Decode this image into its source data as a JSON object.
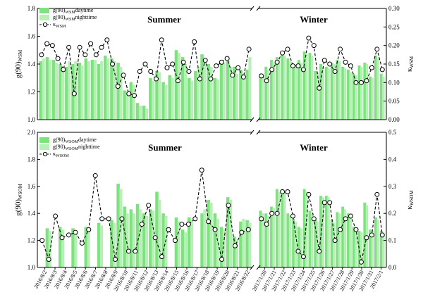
{
  "chart_data": [
    {
      "id": "top",
      "type": "bar",
      "ylabel_main": "g(90)",
      "ylabel_sub": "WSM",
      "y2label_main": "κ",
      "y2label_sub": "WSM",
      "ylim": [
        1.0,
        1.8
      ],
      "yticks": [
        "1.0",
        "1.2",
        "1.4",
        "1.6",
        "1.8"
      ],
      "y2lim": [
        0.0,
        0.3
      ],
      "y2ticks": [
        "0.00",
        "0.05",
        "0.10",
        "0.15",
        "0.20",
        "0.25",
        "0.30"
      ],
      "seasons": [
        "Summer",
        "Winter"
      ],
      "legend": [
        {
          "main": "g(90)",
          "sub": "WSM",
          "tail": "daytime"
        },
        {
          "main": "g(90)",
          "sub": "WSM",
          "tail": "nighttime"
        },
        {
          "main": "κ",
          "sub": "WSM",
          "tail": ""
        }
      ],
      "summer": {
        "day": [
          1.42,
          1.45,
          1.43,
          1.4,
          1.38,
          1.4,
          1.41,
          1.44,
          1.43,
          1.4,
          1.46,
          1.44,
          1.41,
          1.21,
          1.27,
          1.12,
          1.1,
          1.3,
          1.35,
          1.27,
          1.32,
          1.5,
          1.45,
          1.3,
          1.35,
          1.47,
          1.4,
          1.3,
          1.43,
          1.42,
          1.38,
          1.36,
          1.36
        ],
        "night": [
          1.44,
          1.43,
          1.41,
          1.38,
          1.42,
          1.42,
          1.39,
          1.42,
          1.43,
          1.42,
          1.44,
          1.42,
          1.38,
          1.19,
          1.25,
          1.1,
          1.08,
          1.28,
          1.34,
          1.25,
          1.3,
          1.48,
          1.4,
          1.28,
          1.38,
          1.44,
          1.38,
          1.29,
          1.41,
          1.38,
          1.33,
          1.3,
          1.45
        ],
        "kappa": [
          0.175,
          0.205,
          0.2,
          0.165,
          0.135,
          0.195,
          0.07,
          0.195,
          0.175,
          0.205,
          0.175,
          0.195,
          0.215,
          0.15,
          0.09,
          0.12,
          0.07,
          0.065,
          0.13,
          0.15,
          0.13,
          0.11,
          0.215,
          0.14,
          0.15,
          0.105,
          0.155,
          0.13,
          0.21,
          0.11,
          0.16,
          0.11,
          0.145,
          0.155,
          0.165,
          0.12,
          0.14,
          0.115,
          0.19
        ]
      },
      "winter": {
        "day": [
          1.33,
          1.38,
          1.43,
          1.45,
          1.47,
          1.44,
          1.4,
          1.43,
          1.49,
          1.48,
          1.35,
          1.4,
          1.38,
          1.41,
          1.43,
          1.38,
          1.36,
          1.33,
          1.39,
          1.41,
          1.31,
          1.46,
          1.33
        ],
        "night": [
          1.31,
          1.36,
          1.41,
          1.44,
          1.46,
          1.42,
          1.38,
          1.41,
          1.47,
          1.46,
          1.34,
          1.38,
          1.37,
          1.4,
          1.42,
          1.37,
          1.34,
          1.32,
          1.38,
          1.4,
          1.3,
          1.44,
          1.31
        ],
        "kappa": [
          0.118,
          0.105,
          0.135,
          0.155,
          0.18,
          0.19,
          0.145,
          0.145,
          0.135,
          0.22,
          0.2,
          0.085,
          0.16,
          0.15,
          0.13,
          0.19,
          0.155,
          0.145,
          0.1,
          0.1,
          0.105,
          0.14,
          0.19,
          0.135
        ]
      }
    },
    {
      "id": "bottom",
      "type": "bar",
      "ylabel_main": "g(90)",
      "ylabel_sub": "WSOM",
      "y2label_main": "κ",
      "y2label_sub": "WSOM",
      "ylim": [
        1.0,
        2.0
      ],
      "yticks": [
        "1.0",
        "1.2",
        "1.4",
        "1.6",
        "1.8",
        "2.0"
      ],
      "y2lim": [
        0.0,
        0.5
      ],
      "y2ticks": [
        "0.0",
        "0.1",
        "0.2",
        "0.3",
        "0.4",
        "0.5"
      ],
      "seasons": [
        "Summer",
        "Winter"
      ],
      "legend": [
        {
          "main": "g(90)",
          "sub": "WSOM",
          "tail": "daytime"
        },
        {
          "main": "g(90)",
          "sub": "WSOM",
          "tail": "nighttime"
        },
        {
          "main": "κ",
          "sub": "WSOM",
          "tail": ""
        }
      ],
      "summer": {
        "day": [
          null,
          1.29,
          null,
          1.3,
          null,
          1.29,
          null,
          1.3,
          null,
          1.33,
          null,
          1.35,
          1.62,
          1.45,
          1.43,
          1.47,
          1.4,
          1.43,
          1.56,
          1.4,
          null,
          1.37,
          1.28,
          1.37,
          null,
          1.4,
          1.5,
          1.4,
          1.3,
          1.52,
          1.23,
          1.34,
          1.35
        ],
        "night": [
          null,
          1.27,
          null,
          1.28,
          null,
          1.27,
          null,
          1.28,
          null,
          1.31,
          null,
          1.33,
          1.58,
          1.4,
          1.4,
          1.43,
          1.38,
          1.42,
          1.5,
          1.38,
          null,
          1.34,
          1.26,
          1.35,
          null,
          1.43,
          1.48,
          1.36,
          1.28,
          1.5,
          1.2,
          1.36,
          1.33
        ],
        "kappa": [
          0.1,
          0.03,
          0.19,
          0.11,
          0.12,
          0.13,
          0.09,
          0.14,
          0.34,
          0.18,
          0.18,
          0.03,
          0.18,
          0.06,
          0.06,
          0.16,
          0.23,
          0.11,
          0.04,
          0.14,
          0.1,
          0.16,
          0.16,
          0.18,
          0.36,
          0.17,
          0.14,
          0.03,
          0.23,
          0.08,
          0.13,
          0.14
        ]
      },
      "winter": {
        "day": [
          1.42,
          1.4,
          1.45,
          1.58,
          1.58,
          1.4,
          1.36,
          1.3,
          1.58,
          1.42,
          1.36,
          1.53,
          1.53,
          1.35,
          1.41,
          1.45,
          1.4,
          1.3,
          1.27,
          1.48,
          1.28,
          1.37,
          1.27
        ],
        "night": [
          1.4,
          1.38,
          1.44,
          1.56,
          1.56,
          1.38,
          1.34,
          1.29,
          1.56,
          1.4,
          1.34,
          1.52,
          1.52,
          1.33,
          1.4,
          1.43,
          1.38,
          1.28,
          1.26,
          1.46,
          1.27,
          1.35,
          1.25
        ],
        "kappa": [
          0.18,
          0.16,
          0.2,
          0.2,
          0.28,
          0.28,
          0.19,
          0.06,
          0.04,
          0.27,
          0.18,
          0.06,
          0.24,
          0.24,
          0.1,
          0.14,
          0.18,
          0.19,
          0.14,
          0.02,
          0.11,
          0.12,
          0.27,
          0.12
        ]
      },
      "summer_dates": [
        "2016/8/2",
        "2016/8/3",
        "2016/8/4",
        "2016/8/5",
        "2016/8/6",
        "2016/8/7",
        "2016/8/8",
        "2016/8/9",
        "2016/8/10",
        "2016/8/11",
        "2016/8/12",
        "2016/8/13",
        "2016/8/14",
        "2016/8/15",
        "2016/8/16",
        "2016/8/17",
        "2016/8/18",
        "2016/8/19",
        "2016/8/20",
        "2016/8/21",
        "2016/8/22"
      ],
      "winter_dates": [
        "2017/1/20",
        "2017/1/21",
        "2017/1/22",
        "2017/1/23",
        "2017/1/24",
        "2017/1/25",
        "2017/1/26",
        "2017/1/27",
        "2017/1/28",
        "2017/1/29",
        "2017/1/30",
        "2017/1/31",
        "2017/2/1"
      ]
    }
  ],
  "colors": {
    "day": "#7ee27e",
    "night": "#b6f0b6",
    "line": "#000000",
    "marker_fill": "#ffffff"
  }
}
